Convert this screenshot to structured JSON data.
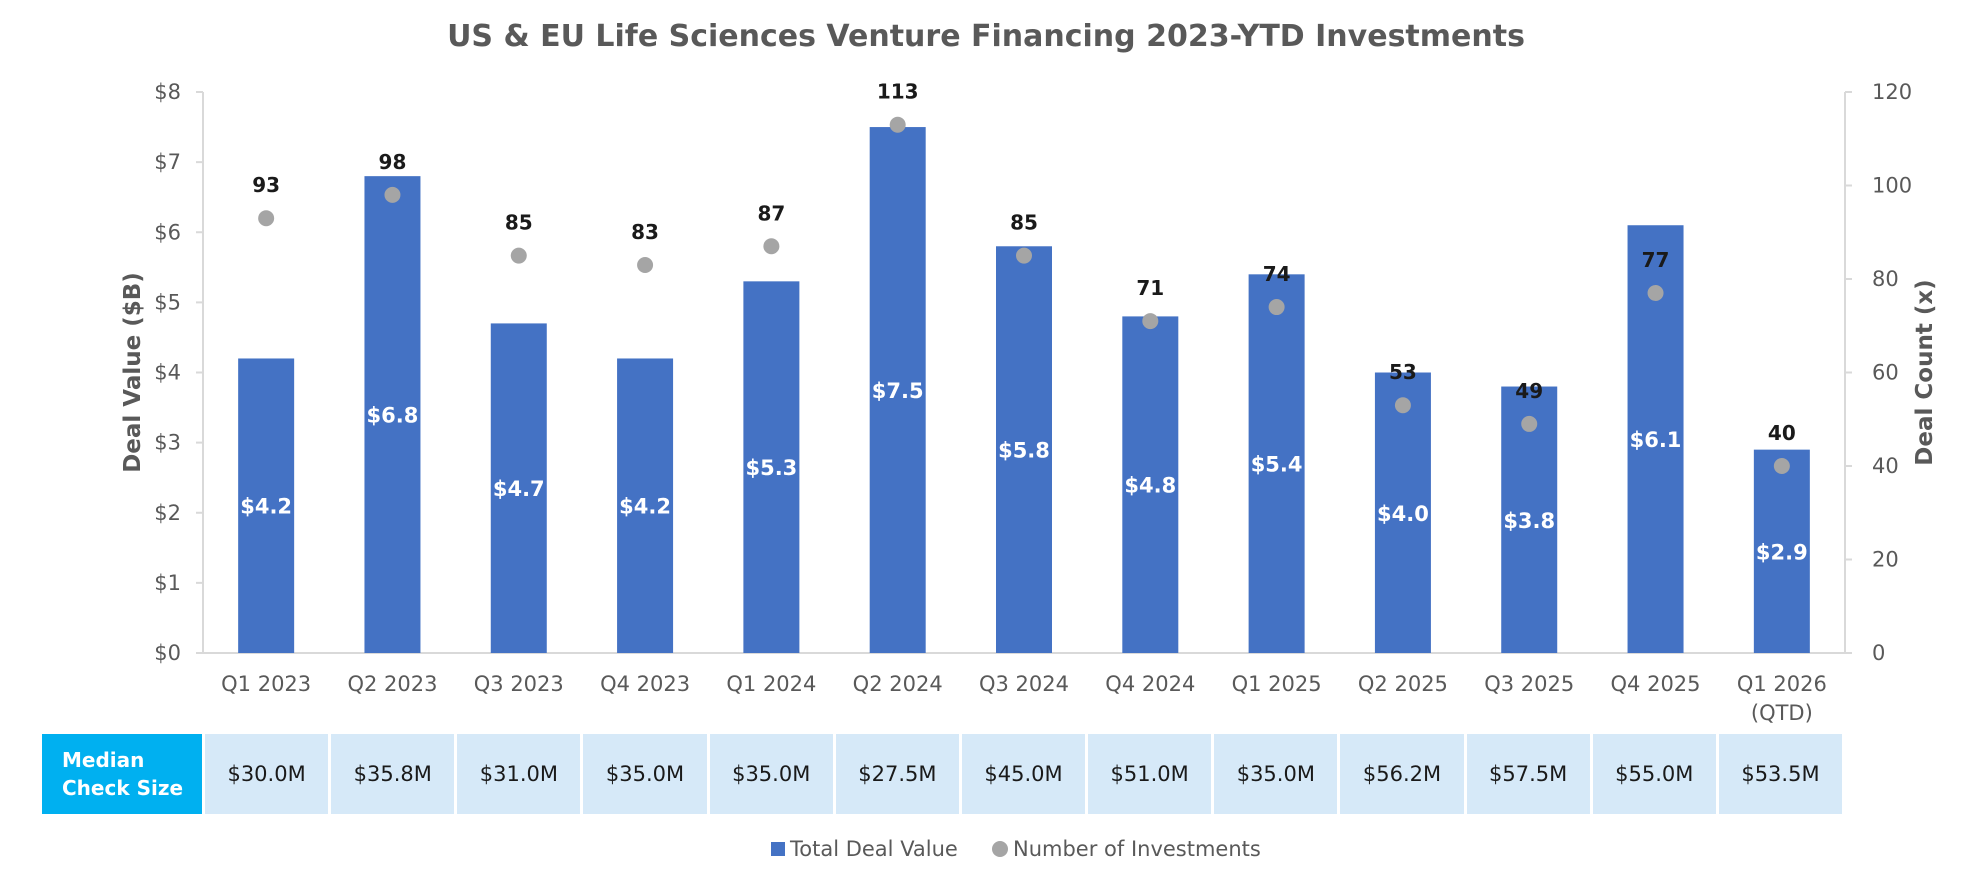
{
  "chart_data": {
    "type": "bar",
    "title": "US & EU Life Sciences Venture Financing 2023-YTD Investments",
    "categories": [
      "Q1 2023",
      "Q2 2023",
      "Q3 2023",
      "Q4 2023",
      "Q1 2024",
      "Q2 2024",
      "Q3 2024",
      "Q4 2024",
      "Q1 2025",
      "Q2 2025",
      "Q3 2025",
      "Q4 2025",
      "Q1 2026 (QTD)"
    ],
    "category_lines": [
      [
        "Q1 2023"
      ],
      [
        "Q2 2023"
      ],
      [
        "Q3 2023"
      ],
      [
        "Q4 2023"
      ],
      [
        "Q1 2024"
      ],
      [
        "Q2 2024"
      ],
      [
        "Q3 2024"
      ],
      [
        "Q4 2024"
      ],
      [
        "Q1 2025"
      ],
      [
        "Q2 2025"
      ],
      [
        "Q3 2025"
      ],
      [
        "Q4 2025"
      ],
      [
        "Q1 2026",
        "(QTD)"
      ]
    ],
    "series": [
      {
        "name": "Total Deal Value",
        "type": "bar",
        "axis": "left",
        "color": "#4472c4",
        "values": [
          4.2,
          6.8,
          4.7,
          4.2,
          5.3,
          7.5,
          5.8,
          4.8,
          5.4,
          4.0,
          3.8,
          6.1,
          2.9
        ],
        "labels": [
          "$4.2",
          "$6.8",
          "$4.7",
          "$4.2",
          "$5.3",
          "$7.5",
          "$5.8",
          "$4.8",
          "$5.4",
          "$4.0",
          "$3.8",
          "$6.1",
          "$2.9"
        ]
      },
      {
        "name": "Number of Investments",
        "type": "scatter",
        "axis": "right",
        "color": "#a5a5a5",
        "values": [
          93,
          98,
          85,
          83,
          87,
          113,
          85,
          71,
          74,
          53,
          49,
          77,
          40
        ],
        "labels": [
          "93",
          "98",
          "85",
          "83",
          "87",
          "113",
          "85",
          "71",
          "74",
          "53",
          "49",
          "77",
          "40"
        ]
      }
    ],
    "ylabel": "Deal Value ($B)",
    "ylim": [
      0,
      8
    ],
    "yticks": [
      "$0",
      "$1",
      "$2",
      "$3",
      "$4",
      "$5",
      "$6",
      "$7",
      "$8"
    ],
    "y2label": "Deal Count (x)",
    "y2lim": [
      0,
      120
    ],
    "y2ticks": [
      "0",
      "20",
      "40",
      "60",
      "80",
      "100",
      "120"
    ],
    "legend_position": "bottom",
    "grid": false
  },
  "median_table": {
    "header_lines": [
      "Median",
      "Check Size"
    ],
    "values": [
      "$30.0M",
      "$35.8M",
      "$31.0M",
      "$35.0M",
      "$35.0M",
      "$27.5M",
      "$45.0M",
      "$51.0M",
      "$35.0M",
      "$56.2M",
      "$57.5M",
      "$55.0M",
      "$53.5M"
    ]
  }
}
